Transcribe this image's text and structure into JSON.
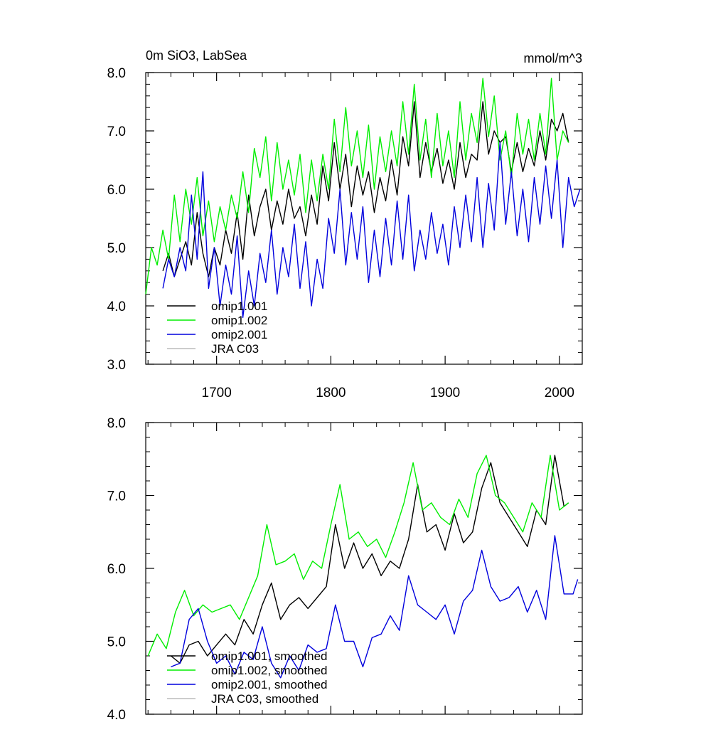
{
  "chart_data": [
    {
      "type": "line",
      "title": "0m SiO3, LabSea",
      "units": "mmol/m^3",
      "xlabel": "",
      "ylabel": "",
      "xlim": [
        1638,
        2020
      ],
      "ylim": [
        3.0,
        8.0
      ],
      "xticks": [
        1700,
        1800,
        1900,
        2000
      ],
      "xtick_labels": [
        "1700",
        "1800",
        "1900",
        "2000"
      ],
      "yticks": [
        3.0,
        4.0,
        5.0,
        6.0,
        7.0,
        8.0
      ],
      "ytick_labels": [
        "3.0",
        "4.0",
        "5.0",
        "6.0",
        "7.0",
        "8.0"
      ],
      "legend_position": "bottom-left",
      "series": [
        {
          "name": "omip1.001",
          "color": "#000000",
          "x": [
            1653,
            1658,
            1663,
            1668,
            1673,
            1678,
            1683,
            1688,
            1693,
            1698,
            1703,
            1708,
            1713,
            1718,
            1723,
            1728,
            1733,
            1738,
            1743,
            1748,
            1753,
            1758,
            1763,
            1768,
            1773,
            1778,
            1783,
            1788,
            1793,
            1798,
            1803,
            1808,
            1813,
            1818,
            1823,
            1828,
            1833,
            1838,
            1843,
            1848,
            1853,
            1858,
            1863,
            1868,
            1873,
            1878,
            1883,
            1888,
            1893,
            1898,
            1903,
            1908,
            1913,
            1918,
            1923,
            1928,
            1933,
            1938,
            1943,
            1948,
            1953,
            1958,
            1963,
            1968,
            1973,
            1978,
            1983,
            1988,
            1993,
            1998,
            2003,
            2008
          ],
          "values": [
            4.6,
            4.9,
            4.5,
            4.8,
            5.1,
            4.7,
            5.6,
            4.9,
            4.5,
            5.0,
            4.7,
            5.3,
            4.9,
            5.6,
            4.8,
            5.9,
            5.2,
            5.7,
            6.0,
            5.3,
            5.8,
            5.4,
            6.0,
            5.5,
            5.7,
            5.2,
            5.9,
            5.4,
            6.4,
            5.8,
            6.8,
            6.0,
            6.6,
            5.7,
            6.4,
            5.9,
            6.3,
            5.6,
            6.2,
            5.8,
            6.5,
            5.9,
            6.9,
            6.4,
            7.5,
            6.2,
            6.8,
            6.3,
            6.7,
            6.1,
            6.5,
            6.0,
            6.8,
            6.2,
            6.6,
            6.5,
            7.5,
            6.6,
            7.0,
            6.8,
            6.9,
            6.3,
            6.8,
            6.3,
            6.7,
            6.4,
            7.0,
            6.5,
            7.2,
            7.0,
            7.3,
            6.8
          ]
        },
        {
          "name": "omip1.002",
          "color": "#00ee00",
          "x": [
            1638,
            1643,
            1648,
            1653,
            1658,
            1663,
            1668,
            1673,
            1678,
            1683,
            1688,
            1693,
            1698,
            1703,
            1708,
            1713,
            1718,
            1723,
            1728,
            1733,
            1738,
            1743,
            1748,
            1753,
            1758,
            1763,
            1768,
            1773,
            1778,
            1783,
            1788,
            1793,
            1798,
            1803,
            1808,
            1813,
            1818,
            1823,
            1828,
            1833,
            1838,
            1843,
            1848,
            1853,
            1858,
            1863,
            1868,
            1873,
            1878,
            1883,
            1888,
            1893,
            1898,
            1903,
            1908,
            1913,
            1918,
            1923,
            1928,
            1933,
            1938,
            1943,
            1948,
            1953,
            1958,
            1963,
            1968,
            1973,
            1978,
            1983,
            1988,
            1993,
            1998,
            2003,
            2008
          ],
          "values": [
            4.2,
            5.0,
            4.7,
            5.3,
            4.8,
            5.9,
            5.1,
            6.0,
            5.4,
            6.2,
            5.2,
            5.8,
            5.1,
            5.7,
            5.3,
            5.9,
            5.5,
            6.3,
            5.6,
            6.7,
            6.2,
            6.9,
            5.8,
            6.8,
            6.0,
            6.5,
            5.9,
            6.6,
            5.6,
            6.5,
            5.8,
            6.6,
            6.0,
            7.2,
            6.3,
            7.4,
            6.4,
            7.0,
            6.2,
            7.1,
            6.0,
            6.9,
            6.3,
            7.0,
            6.4,
            7.5,
            6.6,
            7.8,
            6.5,
            7.2,
            6.2,
            7.3,
            6.4,
            7.0,
            6.2,
            7.5,
            6.5,
            7.3,
            6.8,
            7.9,
            6.9,
            7.6,
            6.5,
            7.0,
            6.2,
            7.3,
            6.6,
            7.2,
            6.5,
            7.3,
            6.6,
            7.9,
            6.5,
            7.0,
            6.8
          ]
        },
        {
          "name": "omip2.001",
          "color": "#0000dd",
          "x": [
            1653,
            1658,
            1663,
            1668,
            1673,
            1678,
            1683,
            1688,
            1693,
            1698,
            1703,
            1708,
            1713,
            1718,
            1723,
            1728,
            1733,
            1738,
            1743,
            1748,
            1753,
            1758,
            1763,
            1768,
            1773,
            1778,
            1783,
            1788,
            1793,
            1798,
            1803,
            1808,
            1813,
            1818,
            1823,
            1828,
            1833,
            1838,
            1843,
            1848,
            1853,
            1858,
            1863,
            1868,
            1873,
            1878,
            1883,
            1888,
            1893,
            1898,
            1903,
            1908,
            1913,
            1918,
            1923,
            1928,
            1933,
            1938,
            1943,
            1948,
            1953,
            1958,
            1963,
            1968,
            1973,
            1978,
            1983,
            1988,
            1993,
            1998,
            2003,
            2008,
            2013,
            2018
          ],
          "values": [
            4.3,
            4.8,
            4.5,
            5.0,
            4.6,
            5.9,
            4.8,
            6.3,
            4.3,
            5.0,
            4.0,
            4.7,
            4.2,
            5.2,
            3.8,
            4.6,
            4.0,
            4.9,
            4.4,
            5.3,
            4.2,
            5.0,
            4.5,
            5.4,
            4.3,
            5.1,
            4.0,
            4.8,
            4.3,
            5.5,
            4.9,
            6.0,
            4.7,
            5.6,
            4.8,
            5.7,
            4.4,
            5.3,
            4.5,
            5.5,
            4.7,
            5.8,
            4.8,
            5.9,
            4.6,
            5.3,
            4.8,
            5.6,
            4.9,
            5.4,
            4.7,
            5.7,
            5.0,
            5.9,
            5.1,
            6.2,
            5.0,
            6.1,
            5.3,
            6.8,
            5.4,
            6.3,
            5.2,
            6.0,
            5.1,
            6.2,
            5.4,
            6.4,
            5.5,
            6.5,
            5.0,
            6.2,
            5.7,
            6.0
          ]
        },
        {
          "name": "JRA C03",
          "color": "#bbbbbb",
          "x": [],
          "values": []
        }
      ]
    },
    {
      "type": "line",
      "title": "",
      "xlabel": "",
      "ylabel": "",
      "xlim": [
        1638,
        2020
      ],
      "ylim": [
        4.0,
        8.0
      ],
      "xticks": [
        1700,
        1800,
        1900,
        2000
      ],
      "yticks": [
        4.0,
        5.0,
        6.0,
        7.0,
        8.0
      ],
      "ytick_labels": [
        "4.0",
        "5.0",
        "6.0",
        "7.0",
        "8.0"
      ],
      "legend_position": "bottom-left",
      "series": [
        {
          "name": "omip1.001, smoothed",
          "color": "#000000",
          "x": [
            1660,
            1668,
            1676,
            1684,
            1692,
            1700,
            1708,
            1716,
            1724,
            1732,
            1740,
            1748,
            1756,
            1764,
            1772,
            1780,
            1788,
            1796,
            1804,
            1812,
            1820,
            1828,
            1836,
            1844,
            1852,
            1860,
            1868,
            1876,
            1884,
            1892,
            1900,
            1908,
            1916,
            1924,
            1932,
            1940,
            1948,
            1956,
            1964,
            1972,
            1980,
            1988,
            1996,
            2004,
            2008
          ],
          "values": [
            4.8,
            4.7,
            4.95,
            5.0,
            4.8,
            4.95,
            5.1,
            4.95,
            5.3,
            5.1,
            5.5,
            5.8,
            5.3,
            5.5,
            5.6,
            5.45,
            5.6,
            5.75,
            6.6,
            6.0,
            6.35,
            6.0,
            6.2,
            5.9,
            6.1,
            6.0,
            6.4,
            7.15,
            6.5,
            6.6,
            6.25,
            6.75,
            6.35,
            6.5,
            7.1,
            7.45,
            6.9,
            6.7,
            6.5,
            6.3,
            6.8,
            6.6,
            7.55,
            6.85,
            6.9
          ]
        },
        {
          "name": "omip1.002, smoothed",
          "color": "#00ee00",
          "x": [
            1640,
            1648,
            1656,
            1664,
            1672,
            1680,
            1688,
            1696,
            1704,
            1712,
            1720,
            1728,
            1736,
            1744,
            1752,
            1760,
            1768,
            1776,
            1784,
            1792,
            1800,
            1808,
            1816,
            1824,
            1832,
            1840,
            1848,
            1856,
            1864,
            1872,
            1880,
            1888,
            1896,
            1904,
            1912,
            1920,
            1928,
            1936,
            1944,
            1952,
            1960,
            1968,
            1976,
            1984,
            1992,
            2000,
            2008
          ],
          "values": [
            4.8,
            5.1,
            4.9,
            5.4,
            5.7,
            5.35,
            5.5,
            5.4,
            5.45,
            5.5,
            5.3,
            5.6,
            5.9,
            6.6,
            6.05,
            6.1,
            6.2,
            5.85,
            6.1,
            6.0,
            6.6,
            7.15,
            6.4,
            6.5,
            6.3,
            6.4,
            6.15,
            6.5,
            6.9,
            7.45,
            6.8,
            6.9,
            6.7,
            6.6,
            6.95,
            6.7,
            7.3,
            7.55,
            7.0,
            6.9,
            6.7,
            6.5,
            6.9,
            6.7,
            7.55,
            6.8,
            6.9
          ]
        },
        {
          "name": "omip2.001, smoothed",
          "color": "#0000dd",
          "x": [
            1660,
            1668,
            1676,
            1684,
            1692,
            1700,
            1708,
            1716,
            1724,
            1732,
            1740,
            1748,
            1756,
            1764,
            1772,
            1780,
            1788,
            1796,
            1804,
            1812,
            1820,
            1828,
            1836,
            1844,
            1852,
            1860,
            1868,
            1876,
            1884,
            1892,
            1900,
            1908,
            1916,
            1924,
            1932,
            1940,
            1948,
            1956,
            1964,
            1972,
            1980,
            1988,
            1996,
            2004,
            2012,
            2016
          ],
          "values": [
            4.65,
            4.7,
            5.3,
            5.45,
            5.0,
            4.7,
            4.8,
            4.55,
            4.85,
            4.75,
            5.2,
            4.7,
            4.5,
            4.8,
            4.6,
            4.95,
            4.85,
            4.9,
            5.5,
            5.0,
            5.0,
            4.65,
            5.05,
            5.1,
            5.35,
            5.15,
            5.9,
            5.5,
            5.4,
            5.3,
            5.5,
            5.1,
            5.55,
            5.7,
            6.25,
            5.75,
            5.55,
            5.6,
            5.75,
            5.4,
            5.7,
            5.3,
            6.45,
            5.65,
            5.65,
            5.85
          ]
        },
        {
          "name": "JRA C03, smoothed",
          "color": "#bbbbbb",
          "x": [],
          "values": []
        }
      ]
    }
  ]
}
